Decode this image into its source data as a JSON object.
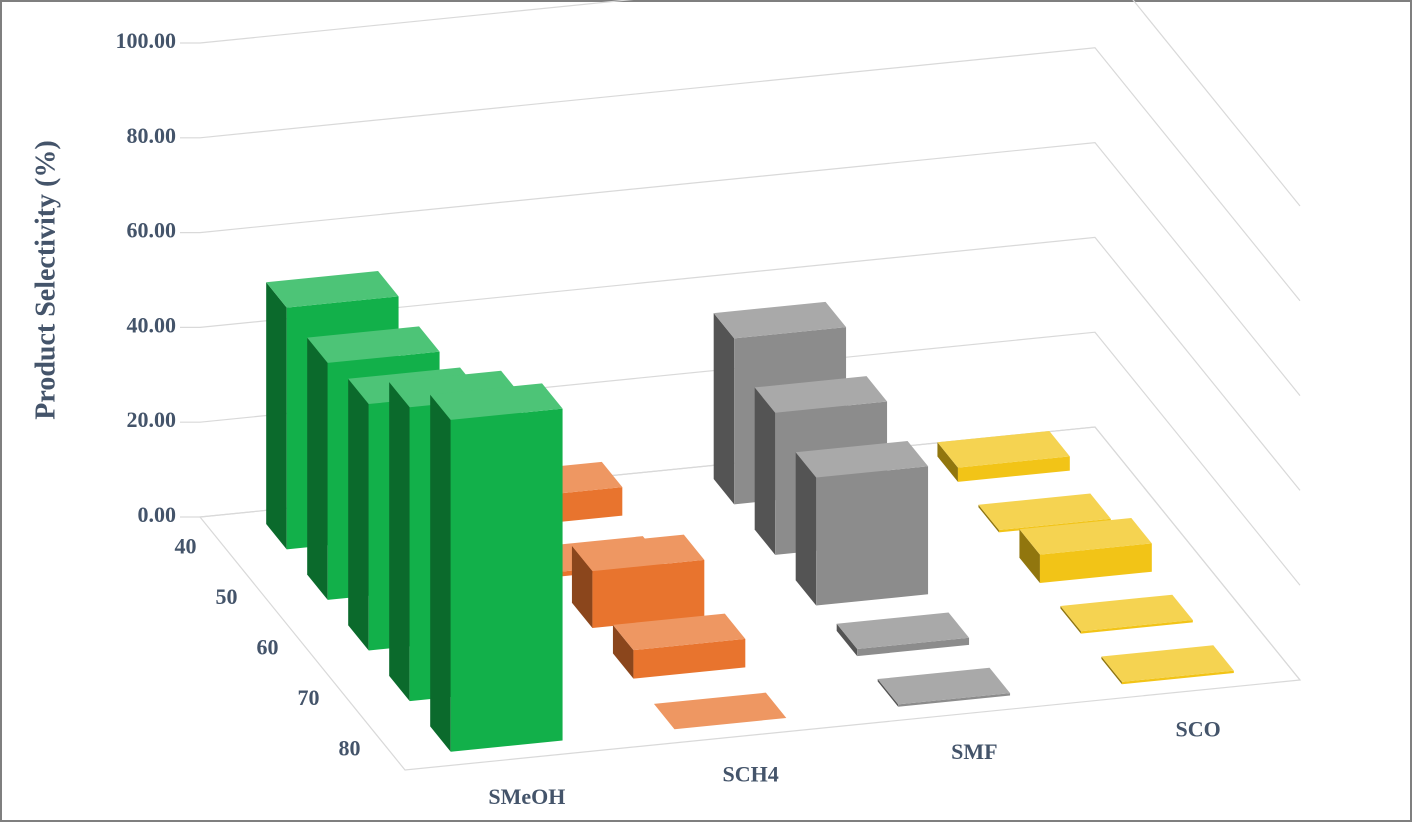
{
  "chart_data": {
    "type": "bar3d",
    "y_label": "Product Selectivity (%)",
    "categories": [
      "40",
      "50",
      "60",
      "70",
      "80"
    ],
    "series": [
      {
        "name": "SMeOH",
        "color": "#12b04a",
        "values": [
          51,
          50,
          52,
          62,
          70
        ]
      },
      {
        "name": "SCH4",
        "color": "#e8742e",
        "values": [
          6,
          1,
          12,
          6,
          0
        ]
      },
      {
        "name": "SMF",
        "color": "#8c8c8c",
        "values": [
          35,
          30,
          27,
          1.5,
          0.5
        ]
      },
      {
        "name": "SCO",
        "color": "#f2c417",
        "values": [
          3,
          0.5,
          6,
          0.5,
          0.5
        ]
      }
    ],
    "ylim": [
      0,
      100
    ],
    "yticks": [
      {
        "value": 0,
        "label": "0.00"
      },
      {
        "value": 20,
        "label": "20.00"
      },
      {
        "value": 40,
        "label": "40.00"
      },
      {
        "value": 60,
        "label": "60.00"
      },
      {
        "value": 80,
        "label": "80.00"
      },
      {
        "value": 100,
        "label": "100.00"
      }
    ],
    "grid": true
  }
}
